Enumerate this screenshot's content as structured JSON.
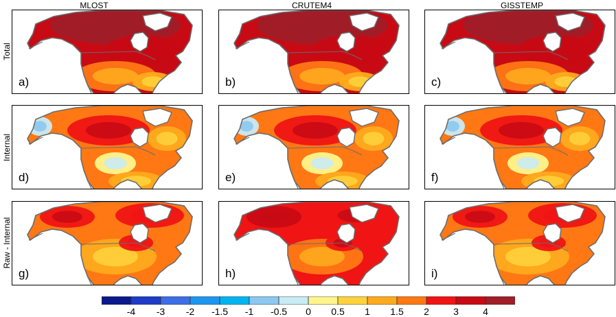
{
  "chart_data": {
    "type": "heatmap",
    "description_region": "North America",
    "columns": [
      "MLOST",
      "CRUTEM4",
      "GISSTEMP"
    ],
    "rows": [
      "Total",
      "Internal",
      "Raw - Internal"
    ],
    "panel_letters": [
      "a)",
      "b)",
      "c)",
      "d)",
      "e)",
      "f)",
      "g)",
      "h)",
      "i)"
    ],
    "colorbar": {
      "boundaries": [
        -4,
        -3,
        -2,
        -1.5,
        -1,
        -0.5,
        0,
        0.5,
        1,
        1.5,
        2,
        3,
        4
      ],
      "tick_labels": [
        "-4",
        "-3",
        "-2",
        "-1.5",
        "-1",
        "-0.5",
        "0",
        "0.5",
        "1",
        "1.5",
        "2",
        "3",
        "4"
      ],
      "colors": [
        "#0a1a8c",
        "#1e3cc8",
        "#3c6ee6",
        "#1e96f0",
        "#00b4f0",
        "#8cc8f0",
        "#c8ebf5",
        "#fff58c",
        "#ffd23c",
        "#ffaa1e",
        "#ff7814",
        "#f01414",
        "#c80a14",
        "#a01e28"
      ]
    },
    "panel_mean_levels": [
      [
        3,
        3,
        3
      ],
      [
        1.5,
        1.5,
        1.5
      ],
      [
        1.5,
        2,
        1.5
      ]
    ]
  }
}
